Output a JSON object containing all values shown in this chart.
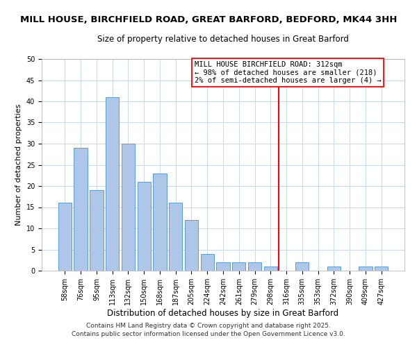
{
  "title": "MILL HOUSE, BIRCHFIELD ROAD, GREAT BARFORD, BEDFORD, MK44 3HH",
  "subtitle": "Size of property relative to detached houses in Great Barford",
  "xlabel": "Distribution of detached houses by size in Great Barford",
  "ylabel": "Number of detached properties",
  "bar_labels": [
    "58sqm",
    "76sqm",
    "95sqm",
    "113sqm",
    "132sqm",
    "150sqm",
    "168sqm",
    "187sqm",
    "205sqm",
    "224sqm",
    "242sqm",
    "261sqm",
    "279sqm",
    "298sqm",
    "316sqm",
    "335sqm",
    "353sqm",
    "372sqm",
    "390sqm",
    "409sqm",
    "427sqm"
  ],
  "bar_values": [
    16,
    29,
    19,
    41,
    30,
    21,
    23,
    16,
    12,
    4,
    2,
    2,
    2,
    1,
    0,
    2,
    0,
    1,
    0,
    1,
    1
  ],
  "bar_color": "#aec6e8",
  "bar_edge_color": "#5b9bd5",
  "vline_color": "#ff0000",
  "annotation_text": "MILL HOUSE BIRCHFIELD ROAD: 312sqm\n← 98% of detached houses are smaller (218)\n2% of semi-detached houses are larger (4) →",
  "annotation_box_edge_color": "#ff0000",
  "ylim": [
    0,
    50
  ],
  "footer1": "Contains HM Land Registry data © Crown copyright and database right 2025.",
  "footer2": "Contains public sector information licensed under the Open Government Licence v3.0.",
  "bg_color": "#ffffff",
  "grid_color": "#c8d8ec",
  "title_fontsize": 9.5,
  "subtitle_fontsize": 8.5,
  "xlabel_fontsize": 8.5,
  "ylabel_fontsize": 8.0,
  "tick_fontsize": 7.0,
  "annotation_fontsize": 7.5,
  "footer_fontsize": 6.5
}
